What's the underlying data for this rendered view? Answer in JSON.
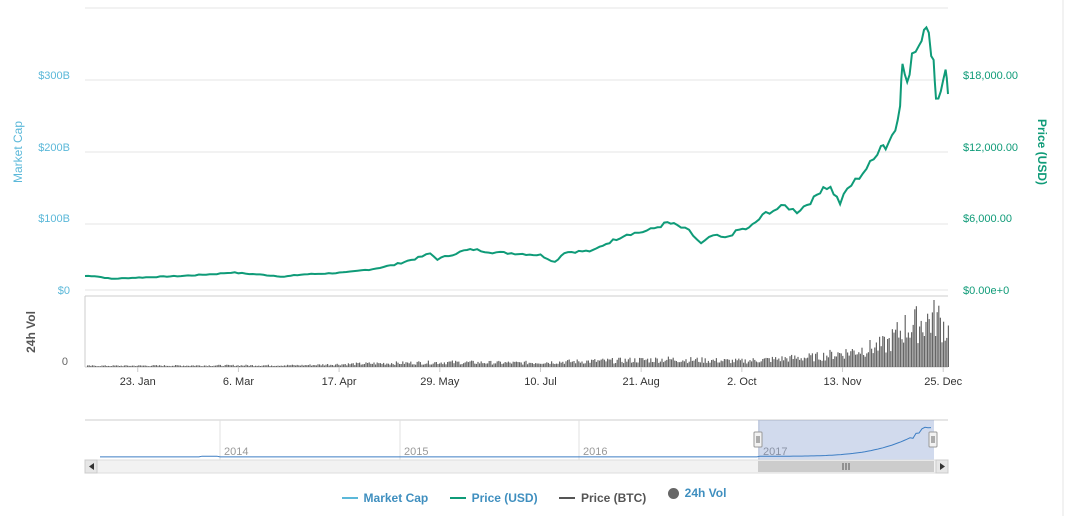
{
  "chart_data": {
    "type": "line",
    "xlabel": "",
    "x_tick_labels": [
      "23. Jan",
      "6. Mar",
      "17. Apr",
      "29. May",
      "10. Jul",
      "21. Aug",
      "2. Oct",
      "13. Nov",
      "25. Dec"
    ],
    "left_axis": {
      "title": "Market Cap",
      "ticks": [
        "$0",
        "$100B",
        "$200B",
        "$300B"
      ],
      "ylim": [
        0,
        300
      ]
    },
    "right_axis": {
      "title": "Price (USD)",
      "ticks": [
        "$0.00e+0",
        "$6,000.00",
        "$12,000.00",
        "$18,000.00"
      ],
      "ylim": [
        0,
        18000
      ]
    },
    "volume_axis": {
      "title": "24h Vol",
      "ticks": [
        "0"
      ]
    },
    "series": [
      {
        "name": "Price (USD)",
        "color": "#0f9b78",
        "x": [
          "2017-01-01",
          "2017-01-05",
          "2017-01-12",
          "2017-01-25",
          "2017-02-10",
          "2017-02-25",
          "2017-03-03",
          "2017-03-15",
          "2017-03-25",
          "2017-04-01",
          "2017-04-20",
          "2017-05-01",
          "2017-05-10",
          "2017-05-20",
          "2017-05-25",
          "2017-05-28",
          "2017-06-08",
          "2017-06-12",
          "2017-06-20",
          "2017-07-01",
          "2017-07-10",
          "2017-07-16",
          "2017-07-20",
          "2017-08-01",
          "2017-08-05",
          "2017-08-15",
          "2017-08-20",
          "2017-08-25",
          "2017-09-01",
          "2017-09-05",
          "2017-09-10",
          "2017-09-15",
          "2017-09-20",
          "2017-09-25",
          "2017-10-01",
          "2017-10-05",
          "2017-10-12",
          "2017-10-20",
          "2017-10-25",
          "2017-11-01",
          "2017-11-05",
          "2017-11-08",
          "2017-11-12",
          "2017-11-15",
          "2017-11-20",
          "2017-11-26",
          "2017-11-29",
          "2017-12-01",
          "2017-12-05",
          "2017-12-07",
          "2017-12-08",
          "2017-12-10",
          "2017-12-12",
          "2017-12-15",
          "2017-12-17",
          "2017-12-19",
          "2017-12-21",
          "2017-12-22",
          "2017-12-24",
          "2017-12-26",
          "2017-12-27"
        ],
        "y": [
          1000,
          1000,
          800,
          900,
          1000,
          1150,
          1250,
          1100,
          950,
          1100,
          1250,
          1500,
          1800,
          2300,
          2600,
          2200,
          2800,
          2900,
          2700,
          2600,
          2500,
          2000,
          2700,
          2800,
          3200,
          4000,
          4100,
          4300,
          4800,
          4600,
          4200,
          3300,
          3900,
          3700,
          4300,
          4400,
          5500,
          6000,
          5600,
          6500,
          7400,
          7300,
          6200,
          7200,
          8100,
          9300,
          10500,
          10200,
          11500,
          13500,
          16200,
          14500,
          17000,
          17600,
          19000,
          18000,
          16400,
          13800,
          14000,
          16000,
          14000
        ]
      },
      {
        "name": "Market Cap",
        "color": "#5bb8d9",
        "x": [],
        "y": []
      },
      {
        "name": "Price (BTC)",
        "color": "#555555",
        "x": [],
        "y": []
      },
      {
        "name": "24h Vol",
        "color": "#666666",
        "x": [
          "2017-01-01",
          "2017-04-01",
          "2017-05-01",
          "2017-06-01",
          "2017-07-01",
          "2017-08-01",
          "2017-09-01",
          "2017-10-01",
          "2017-11-01",
          "2017-11-15",
          "2017-12-01",
          "2017-12-08",
          "2017-12-15",
          "2017-12-22",
          "2017-12-27"
        ],
        "y": [
          0.02,
          0.03,
          0.06,
          0.08,
          0.07,
          0.1,
          0.13,
          0.1,
          0.17,
          0.25,
          0.38,
          0.65,
          0.75,
          0.85,
          0.6
        ]
      }
    ],
    "navigator": {
      "years": [
        "2014",
        "2015",
        "2016",
        "2017"
      ],
      "selected_range": [
        "2017-01-01",
        "2017-12-27"
      ]
    },
    "legend_placement": "bottom",
    "grid": true
  },
  "legend": [
    {
      "label": "Market Cap",
      "symbol": "line",
      "color": "#5bb8d9"
    },
    {
      "label": "Price (USD)",
      "symbol": "line",
      "color": "#0f9b78"
    },
    {
      "label": "Price (BTC)",
      "symbol": "line",
      "color": "#555555"
    },
    {
      "label": "24h Vol",
      "symbol": "dot",
      "color": "#666666"
    }
  ]
}
